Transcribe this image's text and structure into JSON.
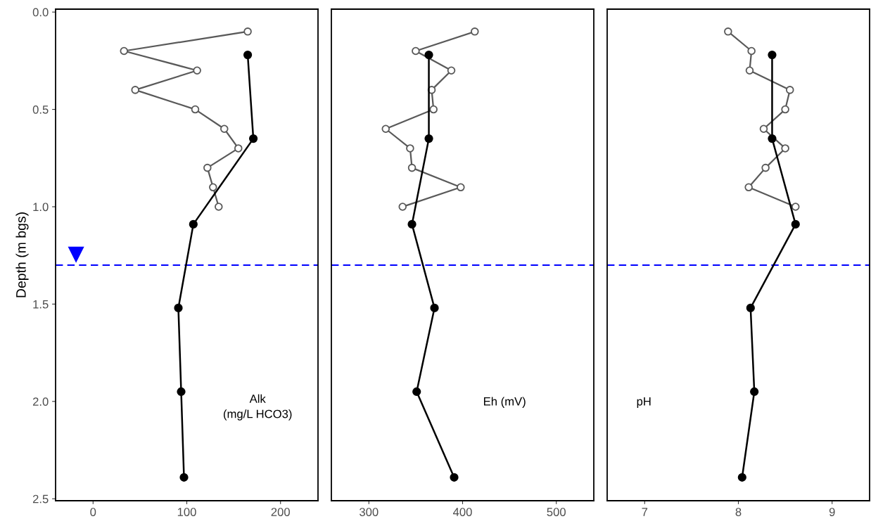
{
  "chart_data": [
    {
      "type": "line",
      "orientation": "horizontal",
      "ylabel": "Depth (m bgs)",
      "annotations": [
        "Alk\n(mg/L HCO3)"
      ],
      "marker": "circle",
      "line_style": "solid",
      "grid": false,
      "xlim": [
        -40,
        240
      ],
      "xticks": [
        0,
        100,
        200
      ],
      "ylim": [
        2.51,
        -0.015
      ],
      "yticks": [
        {
          "value": 0,
          "label": "0.0"
        },
        0.5,
        {
          "value": 1,
          "label": "1.0"
        },
        1.5,
        {
          "value": 2,
          "label": "2.0"
        },
        2.5
      ],
      "ref_lines": [
        {
          "axis": "y",
          "value": 1.3,
          "color": "#0000ff",
          "line_style": "dashed"
        }
      ],
      "series": [
        {
          "color": "#595959",
          "x": [
            0.1,
            0.2,
            0.3,
            0.4,
            0.5,
            0.6,
            0.7,
            0.8,
            0.9,
            1.0
          ],
          "values": [
            165,
            33,
            111,
            45,
            109,
            140,
            155,
            122,
            128,
            134
          ]
        },
        {
          "color": "#000000",
          "x": [
            0.22,
            0.65,
            1.09,
            1.52,
            1.95,
            2.39
          ],
          "values": [
            165,
            171,
            107,
            91,
            94,
            97
          ]
        }
      ]
    },
    {
      "type": "line",
      "orientation": "horizontal",
      "annotations": [
        "Eh (mV)"
      ],
      "marker": "circle",
      "line_style": "solid",
      "grid": false,
      "tick_labels": "x",
      "xlim": [
        260,
        540
      ],
      "xticks": [
        300,
        400,
        500
      ],
      "ylim": [
        2.51,
        -0.015
      ],
      "ref_lines": [
        {
          "axis": "y",
          "value": 1.3,
          "color": "#0000ff",
          "line_style": "dashed"
        }
      ],
      "series": [
        {
          "color": "#595959",
          "x": [
            0.1,
            0.2,
            0.3,
            0.4,
            0.5,
            0.6,
            0.7,
            0.8,
            0.9,
            1.0
          ],
          "values": [
            413,
            350,
            388,
            367,
            369,
            318,
            344,
            346,
            398,
            336
          ]
        },
        {
          "color": "#000000",
          "x": [
            0.22,
            0.65,
            1.09,
            1.52,
            1.95,
            2.39
          ],
          "values": [
            364,
            364,
            346,
            370,
            351,
            391
          ]
        }
      ]
    },
    {
      "type": "line",
      "orientation": "horizontal",
      "annotations": [
        "pH"
      ],
      "marker": "circle",
      "line_style": "solid",
      "grid": false,
      "tick_labels": "x",
      "xlim": [
        6.6,
        9.4
      ],
      "xticks": [
        7,
        8,
        9
      ],
      "ylim": [
        2.51,
        -0.015
      ],
      "ref_lines": [
        {
          "axis": "y",
          "value": 1.3,
          "color": "#0000ff",
          "line_style": "dashed"
        }
      ],
      "series": [
        {
          "color": "#595959",
          "x": [
            0.1,
            0.2,
            0.3,
            0.4,
            0.5,
            0.6,
            0.7,
            0.8,
            0.9,
            1.0
          ],
          "values": [
            7.89,
            8.14,
            8.12,
            8.55,
            8.5,
            8.27,
            8.5,
            8.29,
            8.11,
            8.61
          ]
        },
        {
          "color": "#000000",
          "x": [
            0.22,
            0.65,
            1.09,
            1.52,
            1.95,
            2.39
          ],
          "values": [
            8.36,
            8.36,
            8.61,
            8.13,
            8.17,
            8.04
          ]
        }
      ]
    }
  ]
}
